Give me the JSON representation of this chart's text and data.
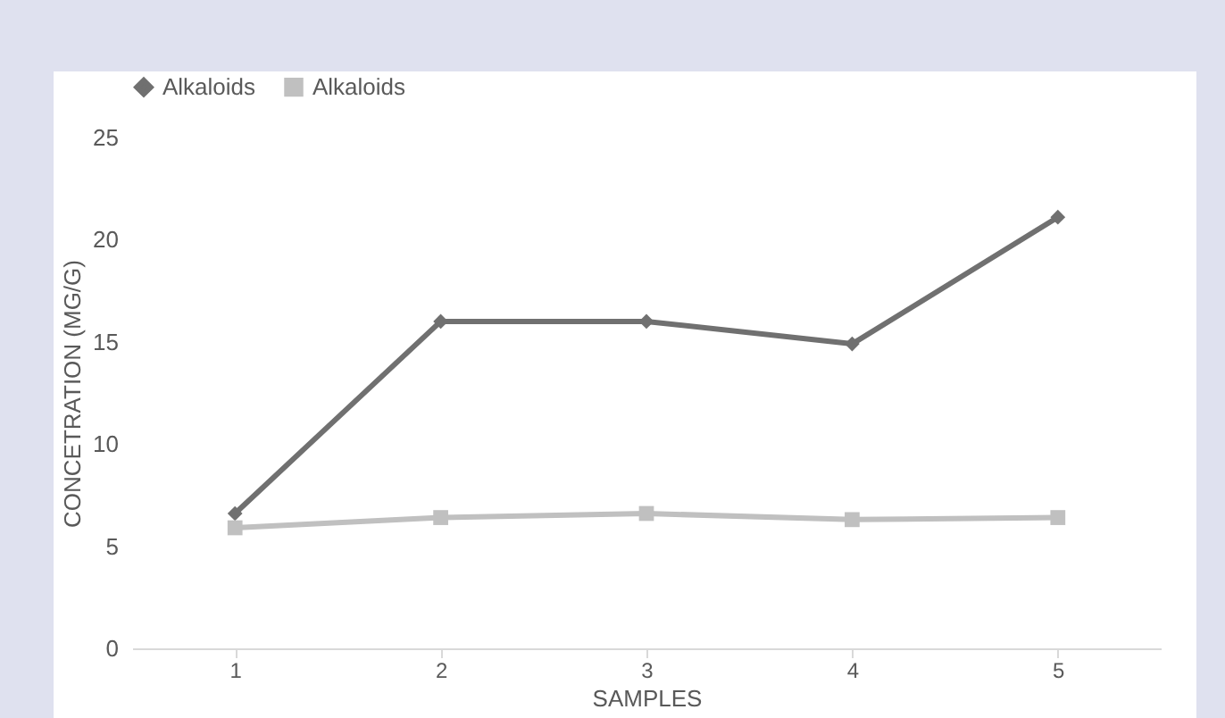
{
  "chart_data": {
    "type": "line",
    "xlabel": "SAMPLES",
    "ylabel": "CONCETRATION (MG/G)",
    "categories": [
      "1",
      "2",
      "3",
      "4",
      "5"
    ],
    "series": [
      {
        "name": "Alkaloids",
        "color": "#707070",
        "marker": "diamond",
        "values": [
          6.6,
          16,
          16,
          14.9,
          21.1
        ]
      },
      {
        "name": "Alkaloids",
        "color": "#c0c0c0",
        "marker": "square",
        "values": [
          5.9,
          6.4,
          6.6,
          6.3,
          6.4
        ]
      }
    ],
    "ylim": [
      0,
      25
    ],
    "yticks": [
      0,
      5,
      10,
      15,
      20,
      25
    ],
    "grid": false,
    "legend": "top"
  }
}
